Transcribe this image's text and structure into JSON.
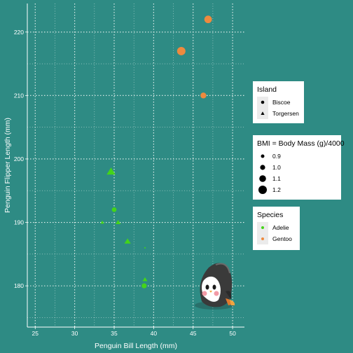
{
  "chart_data": {
    "type": "scatter",
    "title": "",
    "xlabel": "Penguin Bill Length (mm)",
    "ylabel": "Penguin Flipper Length (mm)",
    "xlim": [
      24,
      51.5
    ],
    "ylim": [
      173.5,
      224.5
    ],
    "x_ticks": [
      25,
      30,
      35,
      40,
      45,
      50
    ],
    "y_ticks": [
      180,
      190,
      200,
      210,
      220
    ],
    "grid": "dotted",
    "legend_position": "right",
    "background": "#2e8b84",
    "points": [
      {
        "x": 46.9,
        "y": 222,
        "species": "Gentoo",
        "island": "Biscoe",
        "bmi": 1.15
      },
      {
        "x": 43.5,
        "y": 217,
        "species": "Gentoo",
        "island": "Biscoe",
        "bmi": 1.2
      },
      {
        "x": 46.3,
        "y": 210,
        "species": "Gentoo",
        "island": "Biscoe",
        "bmi": 1.05
      },
      {
        "x": 34.6,
        "y": 198,
        "species": "Adelie",
        "island": "Torgersen",
        "bmi": 1.15
      },
      {
        "x": 35.0,
        "y": 192,
        "species": "Adelie",
        "island": "Biscoe",
        "bmi": 0.98
      },
      {
        "x": 33.5,
        "y": 190,
        "species": "Adelie",
        "island": "Torgersen",
        "bmi": 0.9
      },
      {
        "x": 35.5,
        "y": 190,
        "species": "Adelie",
        "island": "Torgersen",
        "bmi": 0.97
      },
      {
        "x": 36.7,
        "y": 187,
        "species": "Adelie",
        "island": "Torgersen",
        "bmi": 1.03
      },
      {
        "x": 38.9,
        "y": 186,
        "species": "Adelie",
        "island": "Biscoe",
        "bmi": 0.75
      },
      {
        "x": 38.9,
        "y": 181,
        "species": "Adelie",
        "island": "Torgersen",
        "bmi": 0.95
      },
      {
        "x": 38.8,
        "y": 180,
        "species": "Adelie",
        "island": "Biscoe",
        "bmi": 1.0
      }
    ],
    "legends": {
      "island": {
        "title": "Island",
        "items": [
          {
            "label": "Biscoe",
            "shape": "circle"
          },
          {
            "label": "Torgersen",
            "shape": "triangle"
          }
        ]
      },
      "bmi": {
        "title": "BMI = Body Mass (g)/4000",
        "items": [
          {
            "label": "0.9",
            "value": 0.9
          },
          {
            "label": "1.0",
            "value": 1.0
          },
          {
            "label": "1.1",
            "value": 1.1
          },
          {
            "label": "1.2",
            "value": 1.2
          }
        ]
      },
      "species": {
        "title": "Species",
        "items": [
          {
            "label": "Adelie",
            "color": "#44d41a"
          },
          {
            "label": "Gentoo",
            "color": "#ee8a3e"
          }
        ]
      }
    }
  }
}
